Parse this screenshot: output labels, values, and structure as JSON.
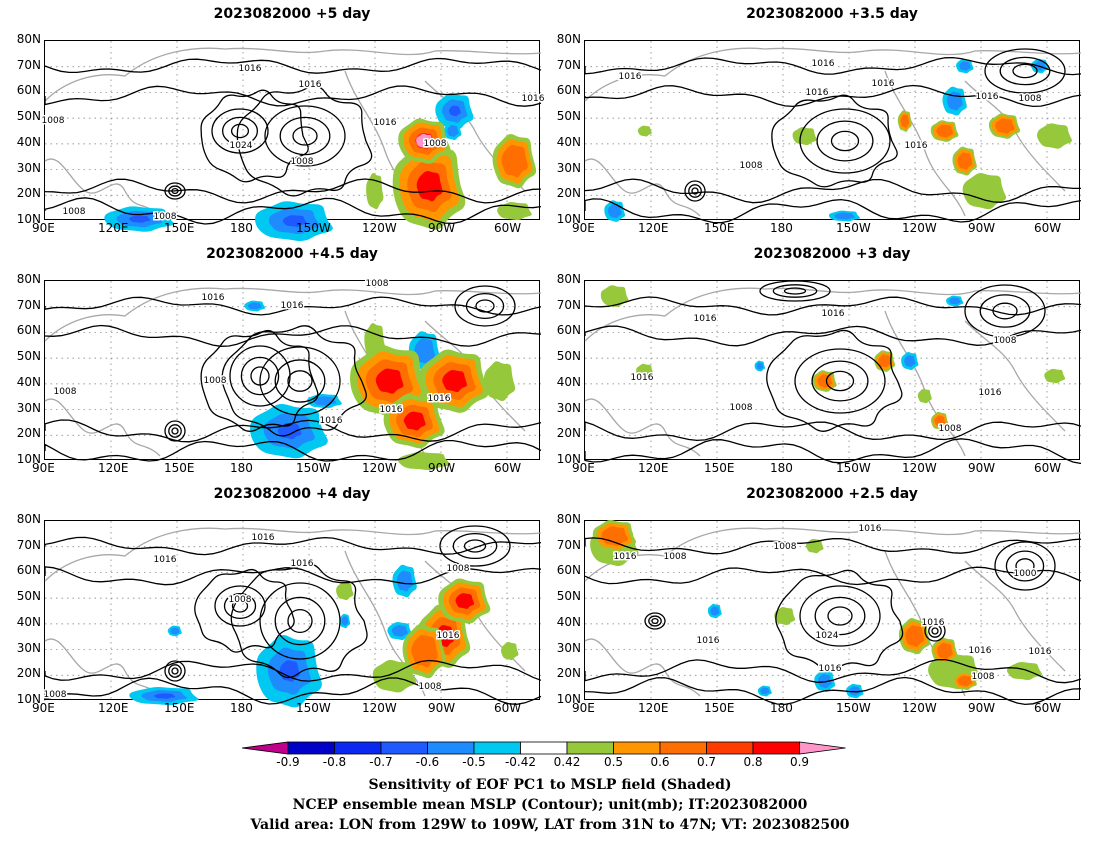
{
  "panels": [
    {
      "title": "2023082000 +5 day",
      "labels": [
        "1016",
        "1016",
        "1016",
        "1016",
        "1008",
        "1008",
        "1024",
        "1008",
        "1008",
        "1008"
      ]
    },
    {
      "title": "2023082000 +3.5 day",
      "labels": [
        "1016",
        "1016",
        "1016",
        "1016",
        "1016",
        "1008",
        "1016",
        "1008"
      ]
    },
    {
      "title": "2023082000 +4.5 day",
      "labels": [
        "1016",
        "1016",
        "1008",
        "1008",
        "1008",
        "1016",
        "1016",
        "1016"
      ]
    },
    {
      "title": "2023082000 +3 day",
      "labels": [
        "1016",
        "1016",
        "1008",
        "1016",
        "1008",
        "1016",
        "1008"
      ]
    },
    {
      "title": "2023082000 +4 day",
      "labels": [
        "1016",
        "1016",
        "1016",
        "1008",
        "1008",
        "1016",
        "1008",
        "1008"
      ]
    },
    {
      "title": "2023082000 +2.5 day",
      "labels": [
        "1016",
        "1008",
        "1016",
        "1008",
        "1000",
        "1016",
        "1024",
        "1016",
        "1016",
        "1016",
        "1016",
        "1008"
      ]
    }
  ],
  "y_ticks": [
    "80N",
    "70N",
    "60N",
    "50N",
    "40N",
    "30N",
    "20N",
    "10N"
  ],
  "x_ticks": [
    "90E",
    "120E",
    "150E",
    "180",
    "150W",
    "120W",
    "90W",
    "60W"
  ],
  "colorbar": {
    "ticks": [
      "-0.9",
      "-0.8",
      "-0.7",
      "-0.6",
      "-0.5",
      "-0.42",
      "0.42",
      "0.5",
      "0.6",
      "0.7",
      "0.8",
      "0.9"
    ],
    "colors": [
      "#c0008c",
      "#0000c8",
      "#0a28f0",
      "#1e5aff",
      "#1e8cff",
      "#00c8f0",
      "#ffffff",
      "#96c83c",
      "#ff9600",
      "#ff6e00",
      "#ff3c00",
      "#ff0000",
      "#ff96c8"
    ]
  },
  "captions": [
    "Sensitivity of EOF PC1 to MSLP field (Shaded)",
    "NCEP ensemble mean MSLP (Contour); unit(mb); IT:2023082000",
    "Valid area: LON from 129W to 109W, LAT from 31N to 47N; VT: 2023082500"
  ]
}
